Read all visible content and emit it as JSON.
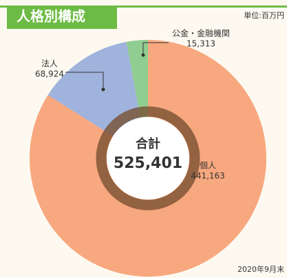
{
  "chart_data": {
    "type": "donut",
    "title": "人格別構成",
    "unit": "単位:百万円",
    "date": "2020年9月末",
    "categories": [
      "個人",
      "法人",
      "公金・金融機関"
    ],
    "values": [
      441163,
      68924,
      15313
    ],
    "value_labels": [
      "441,163",
      "68,924",
      "15,313"
    ],
    "colors": [
      "#f7a87e",
      "#9fb3dc",
      "#90cd90"
    ],
    "center_label": "合計",
    "total": 525401,
    "total_label": "525,401"
  }
}
